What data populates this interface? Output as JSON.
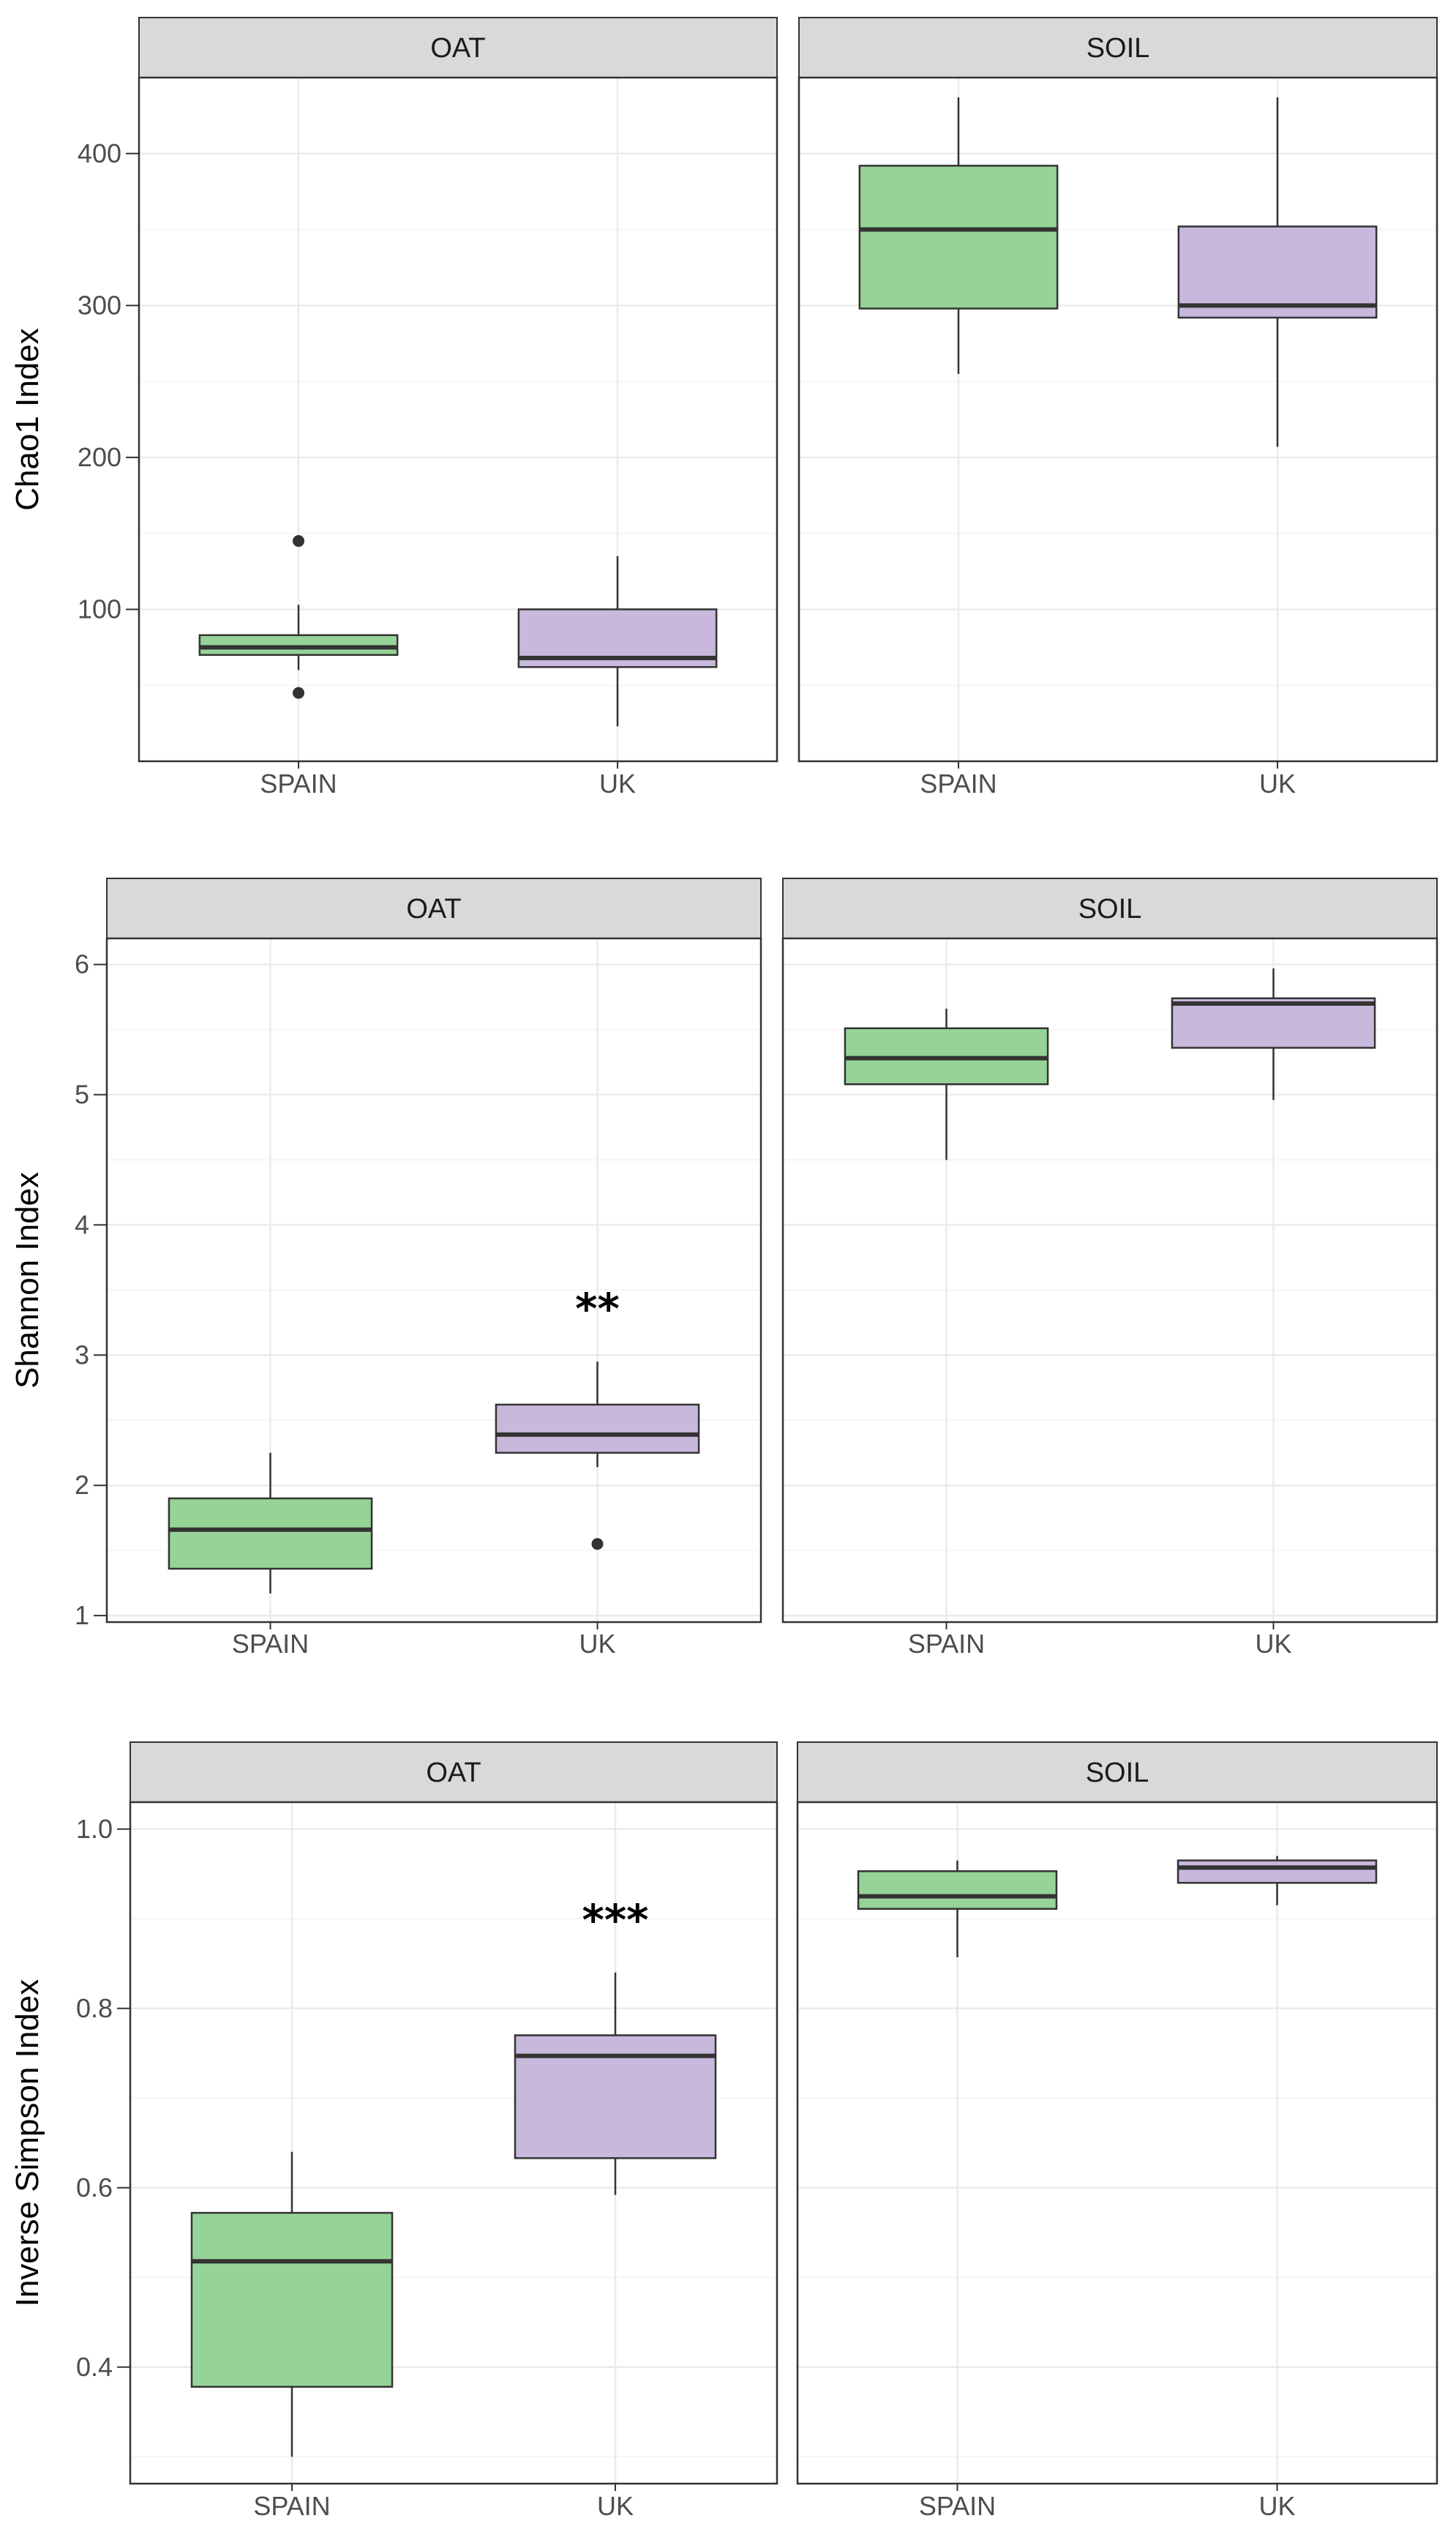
{
  "colors": {
    "SPAIN": "#95d396",
    "UK": "#c7b8dc",
    "box_stroke": "#333333",
    "strip_fill": "#d9d9d9",
    "grid_major": "#ebebeb",
    "grid_minor": "#f5f5f5",
    "panel_border": "#333333"
  },
  "chart_data": [
    {
      "type": "boxplot",
      "ylabel": "Chao1 Index",
      "ylim": [
        0,
        450
      ],
      "yticks": [
        100,
        200,
        300,
        400
      ],
      "categories": [
        "SPAIN",
        "UK"
      ],
      "panels": [
        {
          "title": "OAT",
          "boxes": [
            {
              "group": "SPAIN",
              "min": 60,
              "q1": 70,
              "median": 75,
              "q3": 83,
              "max": 103,
              "outliers": [
                145,
                45
              ],
              "significance": ""
            },
            {
              "group": "UK",
              "min": 23,
              "q1": 62,
              "median": 68,
              "q3": 100,
              "max": 135,
              "outliers": [],
              "significance": ""
            }
          ]
        },
        {
          "title": "SOIL",
          "boxes": [
            {
              "group": "SPAIN",
              "min": 255,
              "q1": 298,
              "median": 350,
              "q3": 392,
              "max": 437,
              "outliers": [],
              "significance": ""
            },
            {
              "group": "UK",
              "min": 207,
              "q1": 292,
              "median": 300,
              "q3": 352,
              "max": 437,
              "outliers": [],
              "significance": ""
            }
          ]
        }
      ]
    },
    {
      "type": "boxplot",
      "ylabel": "Shannon Index",
      "ylim": [
        0.95,
        6.2
      ],
      "yticks": [
        1,
        2,
        3,
        4,
        5,
        6
      ],
      "categories": [
        "SPAIN",
        "UK"
      ],
      "panels": [
        {
          "title": "OAT",
          "boxes": [
            {
              "group": "SPAIN",
              "min": 1.17,
              "q1": 1.36,
              "median": 1.66,
              "q3": 1.9,
              "max": 2.25,
              "outliers": [],
              "significance": ""
            },
            {
              "group": "UK",
              "min": 2.14,
              "q1": 2.25,
              "median": 2.39,
              "q3": 2.62,
              "max": 2.95,
              "outliers": [
                1.55
              ],
              "significance": "**"
            }
          ]
        },
        {
          "title": "SOIL",
          "boxes": [
            {
              "group": "SPAIN",
              "min": 4.5,
              "q1": 5.08,
              "median": 5.28,
              "q3": 5.51,
              "max": 5.66,
              "outliers": [],
              "significance": ""
            },
            {
              "group": "UK",
              "min": 4.96,
              "q1": 5.36,
              "median": 5.7,
              "q3": 5.74,
              "max": 5.97,
              "outliers": [],
              "significance": ""
            }
          ]
        }
      ]
    },
    {
      "type": "boxplot",
      "ylabel": "Inverse Simpson Index",
      "ylim": [
        0.27,
        1.03
      ],
      "yticks": [
        0.4,
        0.6,
        0.8,
        1.0
      ],
      "yticklabels": [
        "0.4",
        "0.6",
        "0.8",
        "1.0"
      ],
      "categories": [
        "SPAIN",
        "UK"
      ],
      "panels": [
        {
          "title": "OAT",
          "boxes": [
            {
              "group": "SPAIN",
              "min": 0.3,
              "q1": 0.378,
              "median": 0.518,
              "q3": 0.572,
              "max": 0.64,
              "outliers": [],
              "significance": ""
            },
            {
              "group": "UK",
              "min": 0.592,
              "q1": 0.633,
              "median": 0.747,
              "q3": 0.77,
              "max": 0.84,
              "outliers": [],
              "significance": "***"
            }
          ]
        },
        {
          "title": "SOIL",
          "boxes": [
            {
              "group": "SPAIN",
              "min": 0.857,
              "q1": 0.911,
              "median": 0.925,
              "q3": 0.953,
              "max": 0.965,
              "outliers": [],
              "significance": ""
            },
            {
              "group": "UK",
              "min": 0.915,
              "q1": 0.94,
              "median": 0.957,
              "q3": 0.965,
              "max": 0.97,
              "outliers": [],
              "significance": ""
            }
          ]
        }
      ]
    }
  ]
}
